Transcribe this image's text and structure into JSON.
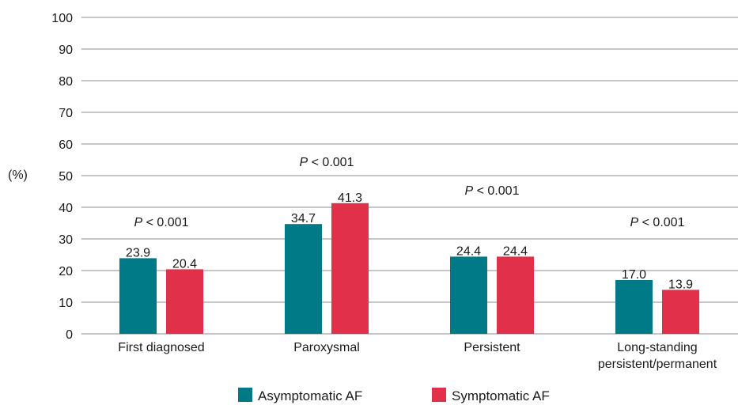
{
  "chart_data": {
    "type": "bar",
    "ylabel": "(%)",
    "ylim": [
      0,
      100
    ],
    "yticks": [
      0,
      10,
      20,
      30,
      40,
      50,
      60,
      70,
      80,
      90,
      100
    ],
    "grid": true,
    "legend_position": "bottom",
    "categories": [
      [
        "First diagnosed"
      ],
      [
        "Paroxysmal"
      ],
      [
        "Persistent"
      ],
      [
        "Long-standing",
        "persistent/permanent"
      ]
    ],
    "series": [
      {
        "name": "Asymptomatic AF",
        "color": "#007a87",
        "values": [
          23.9,
          34.7,
          24.4,
          17.0
        ],
        "labels": [
          "23.9",
          "34.7",
          "24.4",
          "17.0"
        ]
      },
      {
        "name": "Symptomatic AF",
        "color": "#e0304a",
        "values": [
          20.4,
          41.3,
          24.4,
          13.9
        ],
        "labels": [
          "20.4",
          "41.3",
          "24.4",
          "13.9"
        ]
      }
    ],
    "annotations": [
      {
        "category": 0,
        "p_symbol": "P",
        "text": " < 0.001",
        "at_value": 34
      },
      {
        "category": 1,
        "p_symbol": "P",
        "text": " < 0.001",
        "at_value": 53
      },
      {
        "category": 2,
        "p_symbol": "P",
        "text": " < 0.001",
        "at_value": 44
      },
      {
        "category": 3,
        "p_symbol": "P",
        "text": " < 0.001",
        "at_value": 34
      }
    ]
  }
}
